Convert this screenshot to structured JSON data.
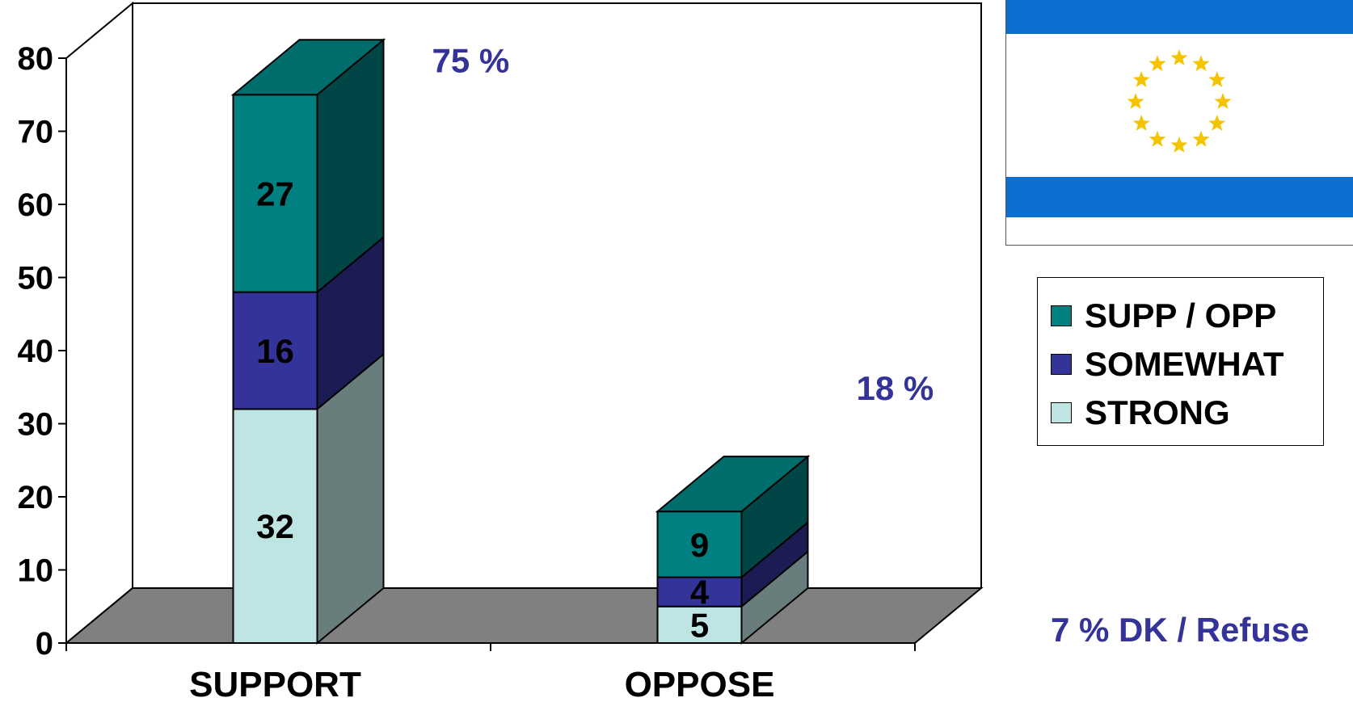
{
  "chart_data": {
    "type": "bar",
    "stacked": true,
    "three_d": true,
    "categories": [
      "SUPPORT",
      "OPPOSE"
    ],
    "series": [
      {
        "name": "STRONG",
        "values": [
          32,
          5
        ],
        "color": "#bfe4e4"
      },
      {
        "name": "SOMEWHAT",
        "values": [
          16,
          4
        ],
        "color": "#333399"
      },
      {
        "name": "SUPP / OPP",
        "values": [
          27,
          9
        ],
        "color": "#008080"
      }
    ],
    "totals": [
      "75 %",
      "18 %"
    ],
    "ylim": [
      0,
      80
    ],
    "yticks": [
      "0",
      "10",
      "20",
      "30",
      "40",
      "50",
      "60",
      "70",
      "80"
    ],
    "annotation": "7 % DK / Refuse",
    "legend_position": "right",
    "floor_color": "#808080"
  },
  "legend": {
    "items": [
      {
        "label": "SUPP / OPP",
        "color": "#008080"
      },
      {
        "label": "SOMEWHAT",
        "color": "#333399"
      },
      {
        "label": "STRONG",
        "color": "#bfe4e4"
      }
    ]
  },
  "flag": {
    "icon": "eu-stars-flag-icon",
    "stripe_color": "#0b6fd1",
    "star_color": "#f5c400"
  }
}
